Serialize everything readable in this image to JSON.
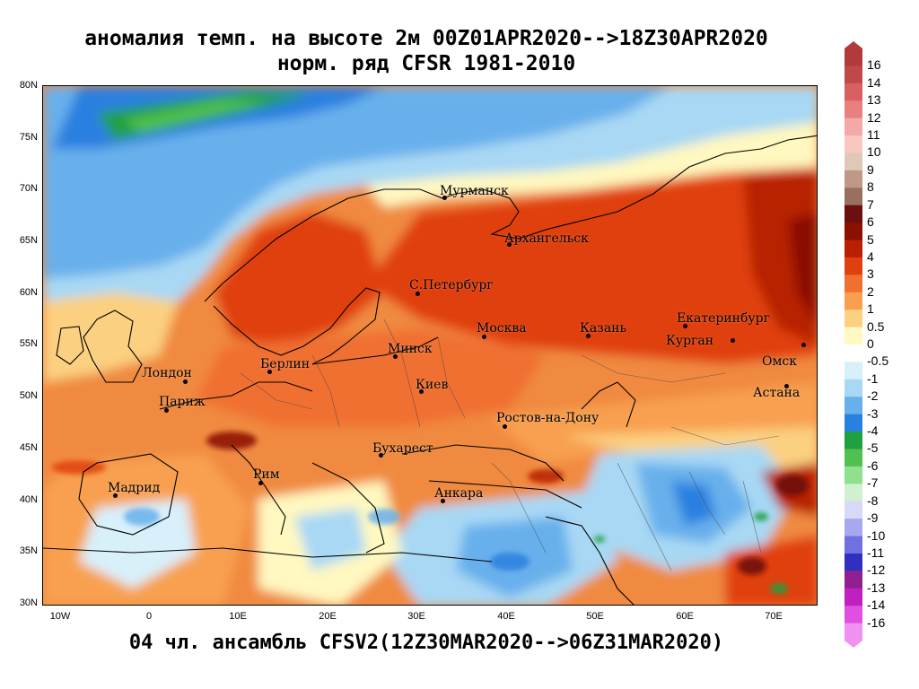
{
  "title": {
    "line1": "аномалия темп. на высоте 2м 00Z01APR2020-->18Z30APR2020",
    "line2": "норм. ряд CFSR 1981-2010",
    "bottom": "04 чл. ансамбль CFSV2(12Z30MAR2020-->06Z31MAR2020)"
  },
  "axes": {
    "lat_labels": [
      "80N",
      "75N",
      "70N",
      "65N",
      "60N",
      "55N",
      "50N",
      "45N",
      "40N",
      "35N",
      "30N"
    ],
    "lon_labels": [
      "10W",
      "0",
      "10E",
      "20E",
      "30E",
      "40E",
      "50E",
      "60E",
      "70E"
    ]
  },
  "cities": [
    {
      "name": "Мурманск"
    },
    {
      "name": "Архангельск"
    },
    {
      "name": "С.Петербург"
    },
    {
      "name": "Москва"
    },
    {
      "name": "Казань"
    },
    {
      "name": "Екатеринбург"
    },
    {
      "name": "Курган"
    },
    {
      "name": "Омск"
    },
    {
      "name": "Астана"
    },
    {
      "name": "Минск"
    },
    {
      "name": "Киев"
    },
    {
      "name": "Берлин"
    },
    {
      "name": "Лондон"
    },
    {
      "name": "Париж"
    },
    {
      "name": "Ростов-на-Дону"
    },
    {
      "name": "Бухарест"
    },
    {
      "name": "Рим"
    },
    {
      "name": "Мадрид"
    },
    {
      "name": "Анкара"
    }
  ],
  "colorbar": {
    "labels": [
      "16",
      "14",
      "13",
      "12",
      "11",
      "10",
      "9",
      "8",
      "7",
      "6",
      "5",
      "4",
      "3",
      "2",
      "1",
      "0.5",
      "0",
      "-0.5",
      "-1",
      "-2",
      "-3",
      "-4",
      "-5",
      "-6",
      "-7",
      "-8",
      "-9",
      "-10",
      "-11",
      "-12",
      "-13",
      "-14",
      "-16"
    ],
    "colors": [
      "#b33a3a",
      "#c04848",
      "#d86060",
      "#e88080",
      "#f4a8a8",
      "#f8c8c0",
      "#e0c8b8",
      "#c09888",
      "#987060",
      "#6a1010",
      "#8a1000",
      "#b82000",
      "#e04010",
      "#f07030",
      "#f8a050",
      "#fbd080",
      "#fff8c0",
      "#ffffff",
      "#d8f0fa",
      "#a8d8f4",
      "#68b0ec",
      "#2a80e0",
      "#20a040",
      "#50c050",
      "#90e090",
      "#d0f0d0",
      "#d8d8f8",
      "#a8a8f0",
      "#7070e0",
      "#3030c0",
      "#902090",
      "#c020c0",
      "#e050e0",
      "#f090f0"
    ]
  }
}
